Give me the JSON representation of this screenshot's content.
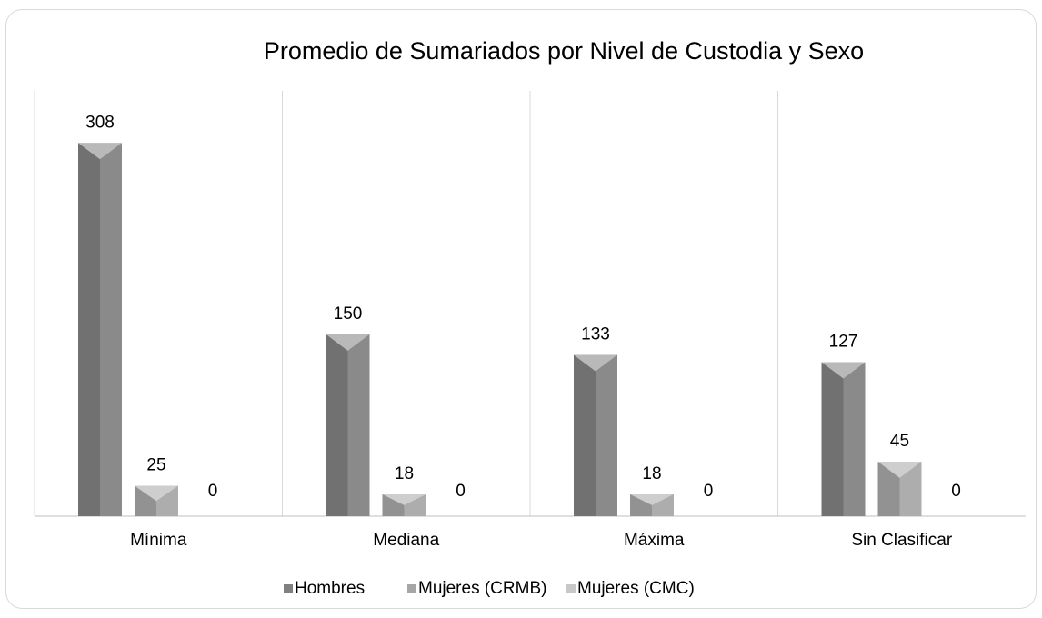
{
  "chart_data": {
    "type": "bar",
    "title": "Promedio de Sumariados por Nivel de Custodia y Sexo",
    "categories": [
      "Mínima",
      "Mediana",
      "Máxima",
      "Sin Clasificar"
    ],
    "series": [
      {
        "name": "Hombres",
        "color": "#808080",
        "values": [
          308,
          150,
          133,
          127
        ]
      },
      {
        "name": "Mujeres (CRMB)",
        "color": "#a6a6a6",
        "values": [
          25,
          18,
          18,
          45
        ]
      },
      {
        "name": "Mujeres (CMC)",
        "color": "#c8c8c8",
        "values": [
          0,
          0,
          0,
          0
        ]
      }
    ],
    "ylim": [
      0,
      351
    ]
  }
}
